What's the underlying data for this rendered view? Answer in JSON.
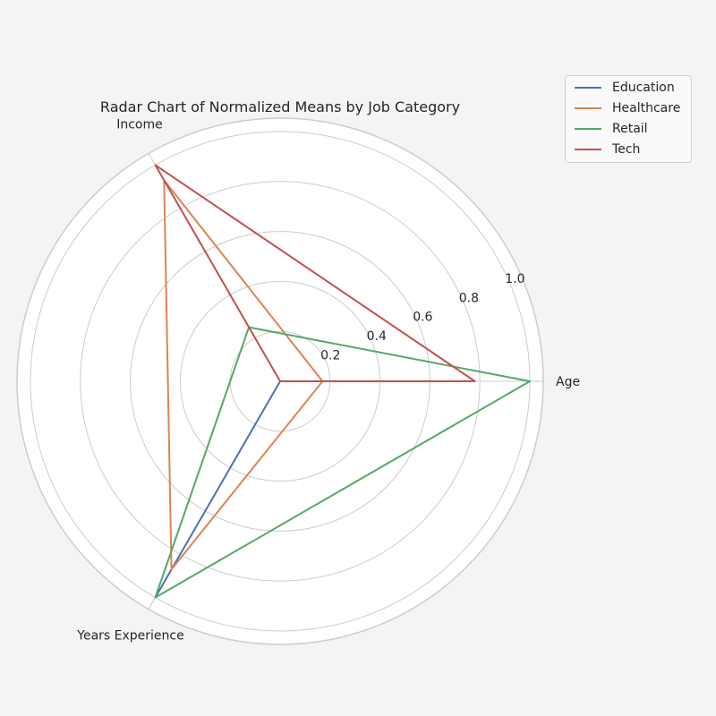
{
  "chart_data": {
    "type": "radar",
    "title": "Radar Chart of Normalized Means by Job Category",
    "axes": [
      "Age",
      "Income",
      "Years Experience"
    ],
    "rlim": [
      0,
      1.0
    ],
    "rticks": [
      0.2,
      0.4,
      0.6,
      0.8,
      1.0
    ],
    "rtick_labels": [
      "0.2",
      "0.4",
      "0.6",
      "0.8",
      "1.0"
    ],
    "legend_position": "top-right",
    "series": [
      {
        "name": "Education",
        "color": "#4c72b0",
        "values": [
          0.0,
          0.0,
          1.0
        ]
      },
      {
        "name": "Healthcare",
        "color": "#dd8452",
        "values": [
          0.17,
          0.93,
          0.87
        ]
      },
      {
        "name": "Retail",
        "color": "#55a868",
        "values": [
          1.0,
          0.25,
          1.0
        ]
      },
      {
        "name": "Tech",
        "color": "#c44e52",
        "values": [
          0.78,
          1.0,
          0.0
        ]
      }
    ]
  }
}
